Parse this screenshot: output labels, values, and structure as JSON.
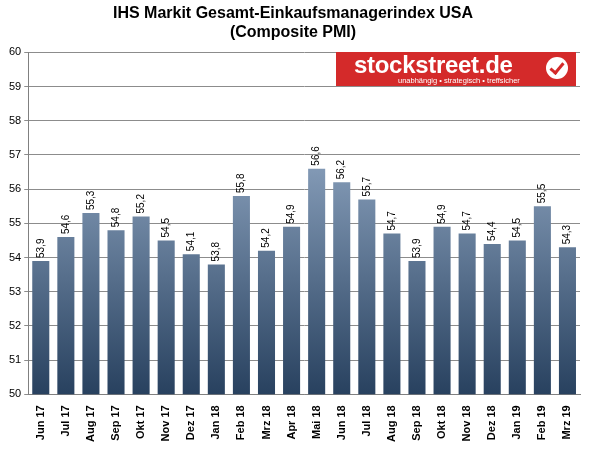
{
  "chart_data": {
    "type": "bar",
    "title": "IHS Markit Gesamt-Einkaufsmanagerindex USA",
    "subtitle": "(Composite PMI)",
    "annotations": [
      "stockstreet.de",
      "unabhängig • strategisch • treffsicher"
    ],
    "categories": [
      "Jun 17",
      "Jul 17",
      "Aug 17",
      "Sep 17",
      "Okt 17",
      "Nov 17",
      "Dez 17",
      "Jan 18",
      "Feb 18",
      "Mrz 18",
      "Apr 18",
      "Mai 18",
      "Jun 18",
      "Jul 18",
      "Aug 18",
      "Sep 18",
      "Okt 18",
      "Nov 18",
      "Dez 18",
      "Jan 19",
      "Feb 19",
      "Mrz 19"
    ],
    "values": [
      53.9,
      54.6,
      55.3,
      54.8,
      55.2,
      54.5,
      54.1,
      53.8,
      55.8,
      54.2,
      54.9,
      56.6,
      56.2,
      55.7,
      54.7,
      53.9,
      54.9,
      54.7,
      54.4,
      54.5,
      55.5,
      54.3
    ],
    "value_labels": [
      "53,9",
      "54,6",
      "55,3",
      "54,8",
      "55,2",
      "54,5",
      "54,1",
      "53,8",
      "55,8",
      "54,2",
      "54,9",
      "56,6",
      "56,2",
      "55,7",
      "54,7",
      "53,9",
      "54,9",
      "54,7",
      "54,4",
      "54,5",
      "55,5",
      "54,3"
    ],
    "color": "#4f81bd",
    "ylim": [
      50,
      60
    ],
    "yticks": [
      50,
      51,
      52,
      53,
      54,
      55,
      56,
      57,
      58,
      59,
      60
    ],
    "grid": true,
    "data_labels": true
  }
}
